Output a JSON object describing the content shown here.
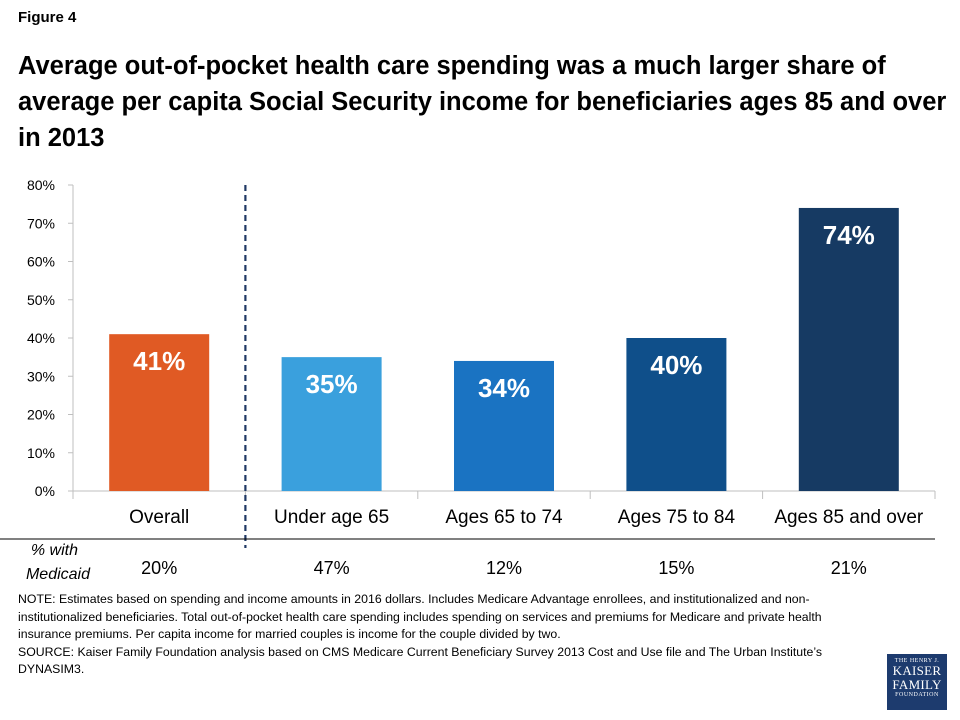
{
  "figure_label": "Figure 4",
  "title": "Average out-of-pocket health care spending was a much larger share of average per capita Social Security income for beneficiaries ages 85 and over in 2013",
  "colors": {
    "overall": "#e05a24",
    "under_65": "#3aa0dd",
    "ages_65_74": "#1a73c2",
    "ages_75_84": "#0f4f8a",
    "ages_85_over": "#163a63"
  },
  "chart_data": {
    "type": "bar",
    "categories": [
      "Overall",
      "Under age 65",
      "Ages 65 to 74",
      "Ages 75 to 84",
      "Ages 85 and over"
    ],
    "values": [
      41,
      35,
      34,
      40,
      74
    ],
    "data_labels": [
      "41%",
      "35%",
      "34%",
      "40%",
      "74%"
    ],
    "colors": [
      "#e05a24",
      "#3aa0dd",
      "#1a73c2",
      "#0f4f8a",
      "#163a63"
    ],
    "ylim": [
      0,
      80
    ],
    "yticks": [
      "0%",
      "10%",
      "20%",
      "30%",
      "40%",
      "50%",
      "60%",
      "70%",
      "80%"
    ],
    "xlabel": "",
    "ylabel": "",
    "grid": false,
    "separator_after_category": "Overall",
    "row_label": "% with Medicaid",
    "row_label_lines": [
      "% with",
      "Medicaid"
    ],
    "row_values": [
      "20%",
      "47%",
      "12%",
      "15%",
      "21%"
    ]
  },
  "note": "NOTE: Estimates based on spending and income amounts in 2016 dollars. Includes Medicare Advantage enrollees, and institutionalized and non-institutionalized beneficiaries. Total out-of-pocket  health care spending includes spending on services and premiums for Medicare and private health insurance premiums.  Per capita income for married couples is income for the couple divided by two.",
  "source": "SOURCE: Kaiser Family Foundation  analysis based on CMS Medicare Current Beneficiary Survey 2013 Cost and Use file and The Urban Institute’s DYNASIM3.",
  "logo": {
    "line1": "THE HENRY J.",
    "line2": "KAISER",
    "line3": "FAMILY",
    "line4": "FOUNDATION"
  }
}
